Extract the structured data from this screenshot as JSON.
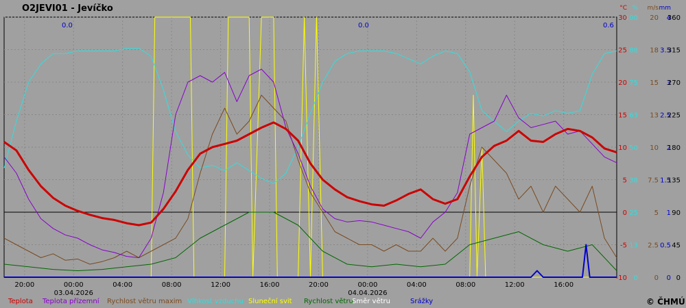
{
  "title": "O2JEVI01 - Jevíčko",
  "copyright": "© ČHMÚ",
  "colors": {
    "background": "#a0a0a0",
    "temperature": "#cc0000",
    "ground_temperature": "#8800cc",
    "gust": "#7a4a20",
    "humidity": "#33dddd",
    "sunshine": "#ffff00",
    "wind_speed": "#006600",
    "wind_direction": "#ffffff",
    "precipitation": "#0000cc"
  },
  "precip_totals": [
    "0.0",
    "0.0",
    "0.6"
  ],
  "chart_data": {
    "type": "line",
    "x": {
      "start": "03.04.2026 ~18:20",
      "end": "04.04.2026 ~19:30",
      "unit": "hours"
    },
    "x_ticks": [
      "20:00",
      "00:00",
      "04:00",
      "08:00",
      "12:00",
      "16:00",
      "20:00",
      "00:00",
      "04:00",
      "08:00",
      "12:00",
      "16:00"
    ],
    "date_labels": [
      "03.04.2026",
      "04.04.2026"
    ],
    "axes": [
      {
        "unit": "°C",
        "color": "#cc0000",
        "ticks": [
          "30",
          "25",
          "20",
          "15",
          "10",
          "5",
          "0",
          "-5",
          "-10"
        ],
        "range": [
          -10,
          30
        ]
      },
      {
        "unit": "%",
        "color": "#33dddd",
        "ticks": [
          "100",
          "88",
          "75",
          "63",
          "50",
          "38",
          "25",
          "13",
          "0"
        ],
        "range": [
          0,
          100
        ]
      },
      {
        "unit": "m/s",
        "color": "#7a4a20",
        "ticks": [
          "20",
          "18",
          "15",
          "13",
          "10",
          "7.5",
          "5",
          "2.5",
          "0"
        ],
        "range": [
          0,
          20
        ]
      },
      {
        "unit": "mm",
        "color": "#0000cc",
        "ticks": [
          "4",
          "3.5",
          "3",
          "2.5",
          "2",
          "1.5",
          "1",
          "0.5",
          "0"
        ],
        "range": [
          0,
          4
        ]
      },
      {
        "unit": "",
        "color": "#000000",
        "ticks": [
          "360",
          "315",
          "270",
          "225",
          "180",
          "135",
          "90",
          "45",
          "0"
        ],
        "range": [
          0,
          360
        ]
      }
    ],
    "legend": [
      {
        "name": "Teplota",
        "color": "#cc0000"
      },
      {
        "name": "Teplota přízemní",
        "color": "#8800cc"
      },
      {
        "name": "Rychlost větru maxim",
        "color": "#7a4a20"
      },
      {
        "name": "Vlhkost vzduchu",
        "color": "#33dddd"
      },
      {
        "name": "Sluneční svit",
        "color": "#ffff00"
      },
      {
        "name": "Rychlost větru",
        "color": "#006600"
      },
      {
        "name": "Směr  větru",
        "color": "#ffffff"
      },
      {
        "name": "Srážky",
        "color": "#0000cc"
      }
    ],
    "series": [
      {
        "name": "Teplota",
        "unit": "°C",
        "points": [
          [
            0,
            10.8
          ],
          [
            1,
            9.5
          ],
          [
            2,
            6.5
          ],
          [
            3,
            4
          ],
          [
            4,
            2.2
          ],
          [
            5,
            1
          ],
          [
            6,
            0.2
          ],
          [
            7,
            -0.4
          ],
          [
            8,
            -0.9
          ],
          [
            9,
            -1.2
          ],
          [
            10,
            -1.7
          ],
          [
            11,
            -2
          ],
          [
            12,
            -1.6
          ],
          [
            13,
            0.5
          ],
          [
            14,
            3.2
          ],
          [
            15,
            6.5
          ],
          [
            16,
            9
          ],
          [
            17,
            10
          ],
          [
            18,
            10.5
          ],
          [
            19,
            11
          ],
          [
            20,
            12
          ],
          [
            21,
            13
          ],
          [
            22,
            13.8
          ],
          [
            23,
            12.8
          ],
          [
            24,
            11
          ],
          [
            25,
            7.5
          ],
          [
            26,
            5
          ],
          [
            27,
            3.5
          ],
          [
            28,
            2.3
          ],
          [
            29,
            1.7
          ],
          [
            30,
            1.2
          ],
          [
            31,
            1
          ],
          [
            32,
            1.8
          ],
          [
            33,
            2.8
          ],
          [
            34,
            3.5
          ],
          [
            35,
            2
          ],
          [
            36,
            1.3
          ],
          [
            37,
            2
          ],
          [
            38,
            5.5
          ],
          [
            39,
            8.5
          ],
          [
            40,
            10.2
          ],
          [
            41,
            11
          ],
          [
            42,
            12.5
          ],
          [
            43,
            11
          ],
          [
            44,
            10.8
          ],
          [
            45,
            12
          ],
          [
            46,
            12.8
          ],
          [
            47,
            12.5
          ],
          [
            48,
            11.5
          ],
          [
            49,
            9.8
          ],
          [
            50,
            9.2
          ]
        ]
      },
      {
        "name": "Teplota přízemní",
        "unit": "°C",
        "points": [
          [
            0,
            8.5
          ],
          [
            1,
            6
          ],
          [
            2,
            2
          ],
          [
            3,
            -1
          ],
          [
            4,
            -2.5
          ],
          [
            5,
            -3.5
          ],
          [
            6,
            -4
          ],
          [
            7,
            -5
          ],
          [
            8,
            -5.8
          ],
          [
            9,
            -6.2
          ],
          [
            10,
            -6.8
          ],
          [
            11,
            -7
          ],
          [
            12,
            -4
          ],
          [
            13,
            3
          ],
          [
            14,
            15
          ],
          [
            15,
            20
          ],
          [
            16,
            21
          ],
          [
            17,
            20
          ],
          [
            18,
            21.5
          ],
          [
            19,
            17
          ],
          [
            20,
            21
          ],
          [
            21,
            22
          ],
          [
            22,
            20
          ],
          [
            23,
            13
          ],
          [
            24,
            9
          ],
          [
            25,
            4
          ],
          [
            26,
            0.5
          ],
          [
            27,
            -1
          ],
          [
            28,
            -1.5
          ],
          [
            29,
            -1.3
          ],
          [
            30,
            -1.5
          ],
          [
            31,
            -2
          ],
          [
            32,
            -2.5
          ],
          [
            33,
            -3
          ],
          [
            34,
            -4
          ],
          [
            35,
            -1.5
          ],
          [
            36,
            0
          ],
          [
            37,
            3
          ],
          [
            38,
            12
          ],
          [
            39,
            13
          ],
          [
            40,
            14
          ],
          [
            41,
            18
          ],
          [
            42,
            14.5
          ],
          [
            43,
            13
          ],
          [
            44,
            13.5
          ],
          [
            45,
            14
          ],
          [
            46,
            12
          ],
          [
            47,
            12.5
          ],
          [
            48,
            10.5
          ],
          [
            49,
            8.5
          ],
          [
            50,
            7.6
          ]
        ]
      },
      {
        "name": "Rychlost větru maxim",
        "unit": "m/s",
        "points": [
          [
            0,
            3
          ],
          [
            1,
            2.5
          ],
          [
            2,
            2
          ],
          [
            3,
            1.5
          ],
          [
            4,
            1.8
          ],
          [
            5,
            1.3
          ],
          [
            6,
            1.4
          ],
          [
            7,
            1
          ],
          [
            8,
            1.2
          ],
          [
            9,
            1.5
          ],
          [
            10,
            2
          ],
          [
            11,
            1.5
          ],
          [
            12,
            2
          ],
          [
            13,
            2.5
          ],
          [
            14,
            3
          ],
          [
            15,
            4.5
          ],
          [
            16,
            8
          ],
          [
            17,
            11
          ],
          [
            18,
            13
          ],
          [
            19,
            11
          ],
          [
            20,
            12
          ],
          [
            21,
            14
          ],
          [
            22,
            13
          ],
          [
            23,
            12
          ],
          [
            24,
            9
          ],
          [
            25,
            6.5
          ],
          [
            26,
            5
          ],
          [
            27,
            3.5
          ],
          [
            28,
            3
          ],
          [
            29,
            2.5
          ],
          [
            30,
            2.5
          ],
          [
            31,
            2
          ],
          [
            32,
            2.5
          ],
          [
            33,
            2
          ],
          [
            34,
            2
          ],
          [
            35,
            3
          ],
          [
            36,
            2
          ],
          [
            37,
            3
          ],
          [
            38,
            7
          ],
          [
            39,
            10
          ],
          [
            40,
            9
          ],
          [
            41,
            8
          ],
          [
            42,
            6
          ],
          [
            43,
            7
          ],
          [
            44,
            5
          ],
          [
            45,
            7
          ],
          [
            46,
            6
          ],
          [
            47,
            5
          ],
          [
            48,
            7
          ],
          [
            49,
            3
          ],
          [
            50,
            1.5
          ]
        ]
      },
      {
        "name": "Vlhkost vzduchu",
        "unit": "%",
        "points": [
          [
            0,
            42
          ],
          [
            1,
            60
          ],
          [
            2,
            75
          ],
          [
            3,
            82
          ],
          [
            4,
            86
          ],
          [
            5,
            86
          ],
          [
            6,
            87
          ],
          [
            7,
            87
          ],
          [
            8,
            87
          ],
          [
            9,
            87
          ],
          [
            10,
            88
          ],
          [
            11,
            88
          ],
          [
            12,
            85
          ],
          [
            13,
            72
          ],
          [
            14,
            56
          ],
          [
            15,
            47
          ],
          [
            16,
            42
          ],
          [
            17,
            43
          ],
          [
            18,
            41
          ],
          [
            19,
            44
          ],
          [
            20,
            41
          ],
          [
            21,
            38
          ],
          [
            22,
            36
          ],
          [
            23,
            40
          ],
          [
            24,
            50
          ],
          [
            25,
            63
          ],
          [
            26,
            75
          ],
          [
            27,
            83
          ],
          [
            28,
            86
          ],
          [
            29,
            87
          ],
          [
            30,
            87
          ],
          [
            31,
            87
          ],
          [
            32,
            86
          ],
          [
            33,
            84
          ],
          [
            34,
            82
          ],
          [
            35,
            85
          ],
          [
            36,
            87
          ],
          [
            37,
            86
          ],
          [
            38,
            79
          ],
          [
            39,
            64
          ],
          [
            40,
            60
          ],
          [
            41,
            56
          ],
          [
            42,
            60
          ],
          [
            43,
            63
          ],
          [
            44,
            62
          ],
          [
            45,
            64
          ],
          [
            46,
            63
          ],
          [
            47,
            64
          ],
          [
            48,
            78
          ],
          [
            49,
            86
          ],
          [
            50,
            87
          ]
        ]
      },
      {
        "name": "Sluneční svit",
        "unit": "%",
        "points": [
          [
            0,
            0
          ],
          [
            12,
            0
          ],
          [
            12.3,
            100
          ],
          [
            15.2,
            100
          ],
          [
            15.5,
            0
          ],
          [
            18,
            0
          ],
          [
            18.3,
            100
          ],
          [
            20,
            100
          ],
          [
            20.3,
            0
          ],
          [
            21,
            100
          ],
          [
            22,
            100
          ],
          [
            22.3,
            0
          ],
          [
            24,
            0
          ],
          [
            24.5,
            100
          ],
          [
            25,
            0
          ],
          [
            25.5,
            100
          ],
          [
            26,
            0
          ],
          [
            38,
            0
          ],
          [
            38.3,
            70
          ],
          [
            38.6,
            0
          ],
          [
            39,
            50
          ],
          [
            39.3,
            0
          ],
          [
            50,
            0
          ]
        ]
      },
      {
        "name": "Rychlost větru",
        "unit": "m/s",
        "points": [
          [
            0,
            1
          ],
          [
            2,
            0.8
          ],
          [
            4,
            0.6
          ],
          [
            6,
            0.5
          ],
          [
            8,
            0.6
          ],
          [
            10,
            0.8
          ],
          [
            12,
            1
          ],
          [
            14,
            1.5
          ],
          [
            16,
            3
          ],
          [
            18,
            4
          ],
          [
            20,
            5
          ],
          [
            22,
            5
          ],
          [
            24,
            4
          ],
          [
            26,
            2
          ],
          [
            28,
            1
          ],
          [
            30,
            0.8
          ],
          [
            32,
            1
          ],
          [
            34,
            0.8
          ],
          [
            36,
            1
          ],
          [
            38,
            2.5
          ],
          [
            40,
            3
          ],
          [
            42,
            3.5
          ],
          [
            44,
            2.5
          ],
          [
            46,
            2
          ],
          [
            48,
            2.5
          ],
          [
            50,
            0.5
          ]
        ]
      },
      {
        "name": "Srážky",
        "unit": "mm",
        "points": [
          [
            0,
            0
          ],
          [
            43,
            0
          ],
          [
            43.5,
            0.1
          ],
          [
            44,
            0
          ],
          [
            47.2,
            0
          ],
          [
            47.5,
            0.5
          ],
          [
            47.8,
            0
          ],
          [
            50,
            0
          ]
        ]
      }
    ]
  }
}
